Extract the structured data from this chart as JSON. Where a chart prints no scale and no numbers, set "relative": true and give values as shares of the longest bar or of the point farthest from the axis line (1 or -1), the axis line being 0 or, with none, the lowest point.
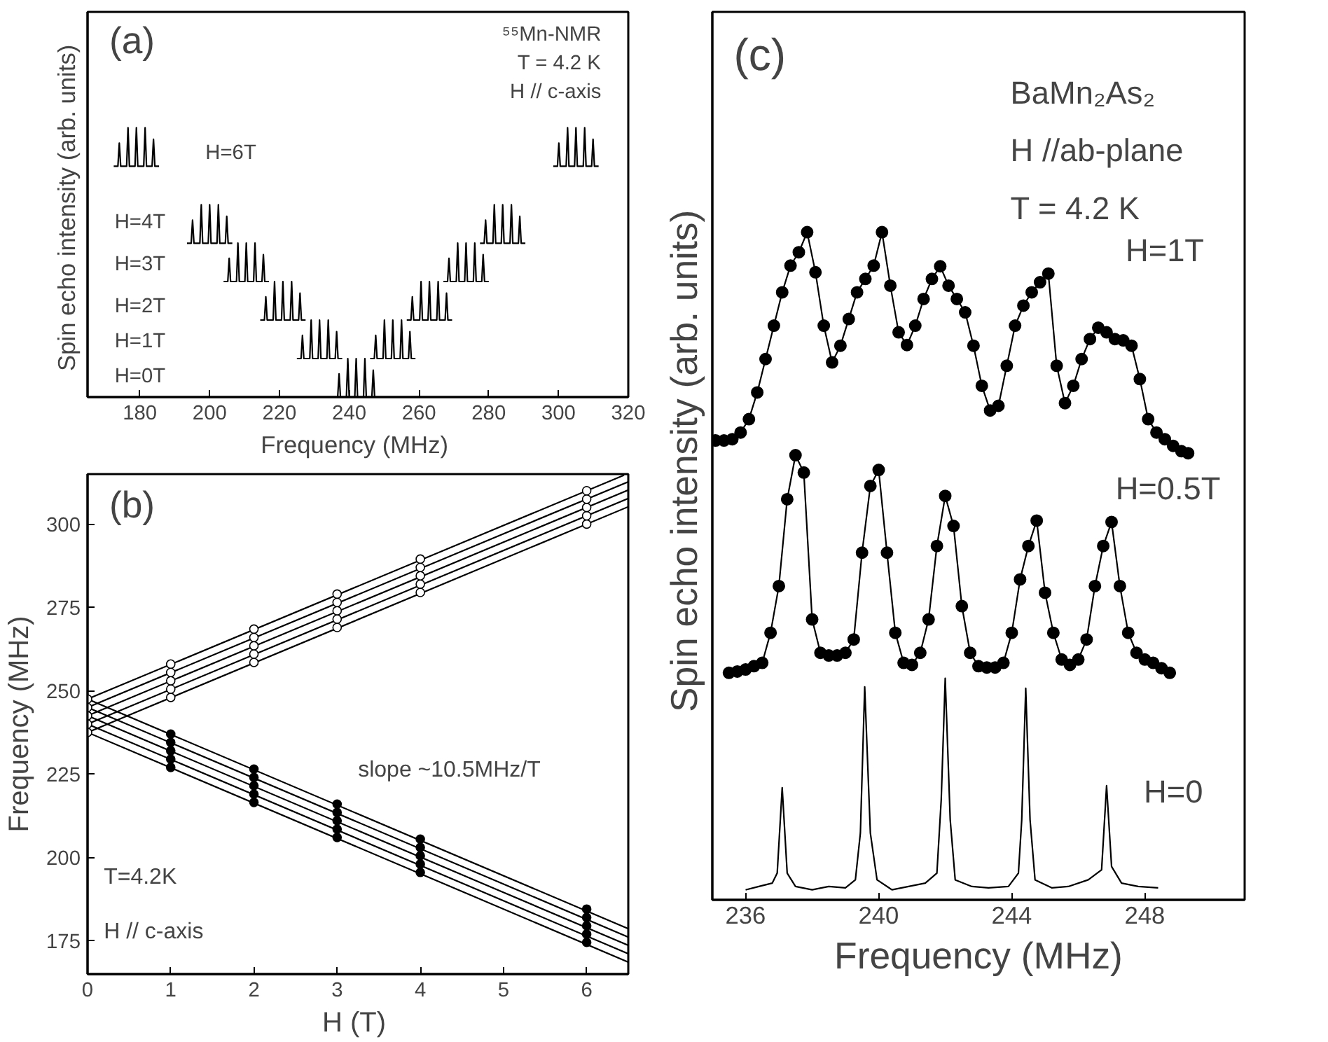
{
  "chart_data": [
    {
      "type": "line",
      "relative": true,
      "tick_labels": "x",
      "xlabel": "Frequency  (MHz)",
      "ylabel": "Spin echo intensity  (arb. units)",
      "xlim": [
        165,
        320
      ],
      "xticks": [
        180,
        200,
        220,
        240,
        260,
        280,
        300,
        320
      ],
      "annotations": [
        "(a)",
        "⁵⁵Mn-NMR",
        "T = 4.2 K",
        "H // c-axis",
        "H=6T",
        "H=4T",
        "H=3T",
        "H=2T",
        "H=1T",
        "H=0T"
      ],
      "series": [
        {
          "color": "#000000",
          "x": [
            235.5,
            236.7,
            237.1,
            237.5,
            239.2,
            239.6,
            240,
            241.6,
            242,
            242.4,
            244.1,
            244.5,
            244.9,
            246.5,
            246.9,
            247.3,
            248.5
          ],
          "values": [
            0,
            0,
            0.086,
            0,
            0,
            0.143,
            0,
            0,
            0.143,
            0,
            0,
            0.143,
            0,
            0,
            0.1,
            0,
            0
          ]
        },
        {
          "color": "#000000",
          "x": [
            225,
            226.2,
            226.6,
            227,
            228.7,
            229.1,
            229.5,
            231.1,
            231.5,
            231.9,
            233.6,
            234,
            234.4,
            236,
            236.4,
            236.8,
            238
          ],
          "values": [
            0.143,
            0.143,
            0.229,
            0.143,
            0.143,
            0.286,
            0.143,
            0.143,
            0.286,
            0.143,
            0.143,
            0.286,
            0.143,
            0.143,
            0.243,
            0.143,
            0.143
          ]
        },
        {
          "color": "#000000",
          "x": [
            246,
            247.2,
            247.6,
            248,
            249.7,
            250.1,
            250.5,
            252.1,
            252.5,
            252.9,
            254.6,
            255,
            255.4,
            257,
            257.4,
            257.8,
            259
          ],
          "values": [
            0.143,
            0.143,
            0.229,
            0.143,
            0.143,
            0.286,
            0.143,
            0.143,
            0.286,
            0.143,
            0.143,
            0.286,
            0.143,
            0.143,
            0.243,
            0.143,
            0.143
          ]
        },
        {
          "color": "#000000",
          "x": [
            214.5,
            215.7,
            216.1,
            216.5,
            218.2,
            218.6,
            219,
            220.6,
            221,
            221.4,
            223.1,
            223.5,
            223.9,
            225.5,
            225.9,
            226.3,
            227.5
          ],
          "values": [
            0.286,
            0.286,
            0.372,
            0.286,
            0.286,
            0.429,
            0.286,
            0.286,
            0.429,
            0.286,
            0.286,
            0.429,
            0.286,
            0.286,
            0.386,
            0.286,
            0.286
          ]
        },
        {
          "color": "#000000",
          "x": [
            256.5,
            257.7,
            258.1,
            258.5,
            260.2,
            260.6,
            261,
            262.6,
            263,
            263.4,
            265.1,
            265.5,
            265.9,
            267.5,
            267.9,
            268.3,
            269.5
          ],
          "values": [
            0.286,
            0.286,
            0.372,
            0.286,
            0.286,
            0.429,
            0.286,
            0.286,
            0.429,
            0.286,
            0.286,
            0.429,
            0.286,
            0.286,
            0.386,
            0.286,
            0.286
          ]
        },
        {
          "color": "#000000",
          "x": [
            204,
            205.2,
            205.6,
            206,
            207.7,
            208.1,
            208.5,
            210.1,
            210.5,
            210.9,
            212.6,
            213,
            213.4,
            215,
            215.4,
            215.8,
            217
          ],
          "values": [
            0.429,
            0.429,
            0.515,
            0.429,
            0.429,
            0.572,
            0.429,
            0.429,
            0.572,
            0.429,
            0.429,
            0.572,
            0.429,
            0.429,
            0.529,
            0.429,
            0.429
          ]
        },
        {
          "color": "#000000",
          "x": [
            267,
            268.2,
            268.6,
            269,
            270.7,
            271.1,
            271.5,
            273.1,
            273.5,
            273.9,
            275.6,
            276,
            276.4,
            278,
            278.4,
            278.8,
            280
          ],
          "values": [
            0.429,
            0.429,
            0.515,
            0.429,
            0.429,
            0.572,
            0.429,
            0.429,
            0.572,
            0.429,
            0.429,
            0.572,
            0.429,
            0.429,
            0.529,
            0.429,
            0.429
          ]
        },
        {
          "color": "#000000",
          "x": [
            193.5,
            194.7,
            195.1,
            195.5,
            197.2,
            197.6,
            198,
            199.6,
            200,
            200.4,
            202.1,
            202.5,
            202.9,
            204.5,
            204.9,
            205.3,
            206.5
          ],
          "values": [
            0.571,
            0.571,
            0.657,
            0.571,
            0.571,
            0.714,
            0.571,
            0.571,
            0.714,
            0.571,
            0.571,
            0.714,
            0.571,
            0.571,
            0.671,
            0.571,
            0.571
          ]
        },
        {
          "color": "#000000",
          "x": [
            277.5,
            278.7,
            279.1,
            279.5,
            281.2,
            281.6,
            282,
            283.6,
            284,
            284.4,
            286.1,
            286.5,
            286.9,
            288.5,
            288.9,
            289.3,
            290.5
          ],
          "values": [
            0.571,
            0.571,
            0.657,
            0.571,
            0.571,
            0.714,
            0.571,
            0.571,
            0.714,
            0.571,
            0.571,
            0.714,
            0.571,
            0.571,
            0.671,
            0.571,
            0.571
          ]
        },
        {
          "color": "#000000",
          "x": [
            172.5,
            173.7,
            174.1,
            174.5,
            176.2,
            176.6,
            177,
            178.6,
            179,
            179.4,
            181.1,
            181.5,
            181.9,
            183.5,
            183.9,
            184.3,
            185.5
          ],
          "values": [
            0.857,
            0.857,
            0.943,
            0.857,
            0.857,
            1,
            0.857,
            0.857,
            1,
            0.857,
            0.857,
            1,
            0.857,
            0.857,
            0.957,
            0.857,
            0.857
          ]
        },
        {
          "color": "#000000",
          "x": [
            298.5,
            299.7,
            300.1,
            300.5,
            302.2,
            302.6,
            303,
            304.6,
            305,
            305.4,
            307.1,
            307.5,
            307.9,
            309.5,
            309.9,
            310.3,
            311.5
          ],
          "values": [
            0.857,
            0.857,
            0.943,
            0.857,
            0.857,
            1,
            0.857,
            0.857,
            1,
            0.857,
            0.857,
            1,
            0.857,
            0.857,
            0.957,
            0.857,
            0.857
          ]
        }
      ]
    },
    {
      "type": "line",
      "xlabel": "H  (T)",
      "ylabel": "Frequency (MHz)",
      "xlim": [
        0,
        6.5
      ],
      "xticks": [
        0,
        1,
        2,
        3,
        4,
        5,
        6
      ],
      "ylim": [
        165,
        315
      ],
      "yticks": [
        175,
        200,
        225,
        250,
        275,
        300
      ],
      "annotations": [
        "(b)",
        "T=4.2K",
        "H // c-axis",
        "slope ~10.5MHz/T"
      ],
      "series": [
        {
          "color": "#000000",
          "x": [
            0,
            6.5
          ],
          "values": [
            237.5,
            305.2
          ]
        },
        {
          "color": "#000000",
          "x": [
            0,
            6.5
          ],
          "values": [
            240,
            307.7
          ]
        },
        {
          "color": "#000000",
          "x": [
            0,
            6.5
          ],
          "values": [
            242.5,
            310.2
          ]
        },
        {
          "color": "#000000",
          "x": [
            0,
            6.5
          ],
          "values": [
            245,
            312.7
          ]
        },
        {
          "color": "#000000",
          "x": [
            0,
            6.45
          ],
          "values": [
            247.5,
            314.7
          ]
        },
        {
          "color": "#000000",
          "x": [
            0,
            6.5
          ],
          "values": [
            237.5,
            168.6
          ]
        },
        {
          "color": "#000000",
          "x": [
            0,
            6.5
          ],
          "values": [
            240,
            171.1
          ]
        },
        {
          "color": "#000000",
          "x": [
            0,
            6.5
          ],
          "values": [
            242.5,
            173.6
          ]
        },
        {
          "color": "#000000",
          "x": [
            0,
            6.5
          ],
          "values": [
            245,
            176.1
          ]
        },
        {
          "color": "#000000",
          "x": [
            0,
            6.5
          ],
          "values": [
            247.5,
            178.6
          ]
        },
        {
          "type": "scatter",
          "marker": "circle",
          "color": "#ffffff",
          "x": [
            0,
            0,
            0,
            0,
            0,
            1,
            1,
            1,
            1,
            1,
            2,
            2,
            2,
            2,
            2,
            3,
            3,
            3,
            3,
            3,
            4,
            4,
            4,
            4,
            4,
            6,
            6,
            6,
            6,
            6
          ],
          "values": [
            237.5,
            240,
            242.5,
            245,
            247.5,
            248,
            250.5,
            253,
            255.5,
            258,
            258.5,
            261,
            263.5,
            266,
            268.5,
            269,
            271.5,
            274,
            276.5,
            279,
            279.5,
            282,
            284.5,
            287,
            289.5,
            300,
            302.5,
            305,
            307.5,
            310
          ]
        },
        {
          "type": "scatter",
          "marker": "circle",
          "color": "#000000",
          "x": [
            1,
            1,
            1,
            1,
            1,
            2,
            2,
            2,
            2,
            2,
            3,
            3,
            3,
            3,
            3,
            4,
            4,
            4,
            4,
            4,
            6,
            6,
            6,
            6,
            6
          ],
          "values": [
            227,
            229.5,
            232,
            234.5,
            237,
            216.5,
            219,
            221.5,
            224,
            226.5,
            206,
            208.5,
            211,
            213.5,
            216,
            195.5,
            198,
            200.5,
            203,
            205.5,
            174.5,
            177,
            179.5,
            182,
            184.5
          ]
        }
      ]
    },
    {
      "type": "line",
      "relative": true,
      "tick_labels": "x",
      "xlabel": "Frequency (MHz)",
      "ylabel": "Spin echo intensity  (arb. units)",
      "xlim": [
        235,
        251
      ],
      "xticks": [
        236,
        240,
        244,
        248
      ],
      "annotations": [
        "(c)",
        "BaMn₂As₂",
        "H //ab-plane",
        "T = 4.2 K",
        "H=1T",
        "H=0.5T",
        "H=0"
      ],
      "series": [
        {
          "color": "#000000",
          "marker": "circle",
          "x": [
            235.1,
            235.35,
            235.6,
            235.85,
            236.1,
            236.35,
            236.6,
            236.85,
            237.1,
            237.35,
            237.6,
            237.85,
            238.1,
            238.35,
            238.6,
            238.85,
            239.1,
            239.35,
            239.6,
            239.85,
            240.1,
            240.35,
            240.6,
            240.85,
            241.1,
            241.35,
            241.6,
            241.85,
            242.1,
            242.35,
            242.6,
            242.85,
            243.1,
            243.35,
            243.6,
            243.85,
            244.1,
            244.35,
            244.6,
            244.85,
            245.1,
            245.35,
            245.6,
            245.85,
            246.1,
            246.35,
            246.6,
            246.85,
            247.1,
            247.35,
            247.6,
            247.85,
            248.1,
            248.35,
            248.6,
            248.85,
            249.1,
            249.3
          ],
          "values": [
            0.688,
            0.688,
            0.69,
            0.7,
            0.72,
            0.76,
            0.81,
            0.86,
            0.91,
            0.95,
            0.97,
            1,
            0.94,
            0.86,
            0.805,
            0.83,
            0.87,
            0.91,
            0.93,
            0.95,
            1,
            0.92,
            0.85,
            0.831,
            0.86,
            0.9,
            0.93,
            0.949,
            0.92,
            0.9,
            0.88,
            0.83,
            0.77,
            0.733,
            0.74,
            0.8,
            0.86,
            0.89,
            0.91,
            0.925,
            0.938,
            0.8,
            0.744,
            0.77,
            0.81,
            0.84,
            0.857,
            0.85,
            0.84,
            0.838,
            0.83,
            0.78,
            0.72,
            0.7,
            0.69,
            0.68,
            0.672,
            0.669
          ]
        },
        {
          "color": "#000000",
          "marker": "circle",
          "x": [
            235.5,
            235.75,
            236,
            236.25,
            236.5,
            236.75,
            237,
            237.25,
            237.5,
            237.75,
            238,
            238.25,
            238.5,
            238.75,
            239,
            239.25,
            239.5,
            239.75,
            240,
            240.25,
            240.5,
            240.75,
            241,
            241.25,
            241.5,
            241.75,
            242,
            242.25,
            242.5,
            242.75,
            243,
            243.25,
            243.5,
            243.75,
            244,
            244.25,
            244.5,
            244.75,
            245,
            245.25,
            245.5,
            245.75,
            246,
            246.25,
            246.5,
            246.75,
            247,
            247.25,
            247.5,
            247.75,
            248,
            248.25,
            248.5,
            248.75
          ],
          "values": [
            0.34,
            0.342,
            0.345,
            0.35,
            0.355,
            0.4,
            0.47,
            0.6,
            0.666,
            0.64,
            0.42,
            0.37,
            0.366,
            0.366,
            0.37,
            0.39,
            0.52,
            0.62,
            0.644,
            0.52,
            0.4,
            0.355,
            0.352,
            0.37,
            0.42,
            0.53,
            0.605,
            0.56,
            0.44,
            0.37,
            0.35,
            0.348,
            0.348,
            0.355,
            0.4,
            0.48,
            0.53,
            0.568,
            0.46,
            0.4,
            0.36,
            0.352,
            0.36,
            0.39,
            0.47,
            0.53,
            0.566,
            0.47,
            0.4,
            0.37,
            0.36,
            0.355,
            0.347,
            0.34
          ]
        },
        {
          "color": "#000000",
          "x": [
            236,
            236.4,
            236.8,
            236.95,
            237.1,
            237.25,
            237.5,
            238,
            238.5,
            239,
            239.3,
            239.45,
            239.58,
            239.75,
            239.95,
            240.4,
            240.9,
            241.4,
            241.75,
            241.88,
            242,
            242.15,
            242.3,
            242.8,
            243.3,
            243.9,
            244.2,
            244.3,
            244.42,
            244.55,
            244.7,
            245.2,
            245.7,
            246.3,
            246.7,
            246.85,
            247,
            247.3,
            247.8,
            248.4
          ],
          "values": [
            0.015,
            0.02,
            0.025,
            0.04,
            0.168,
            0.04,
            0.02,
            0.015,
            0.02,
            0.018,
            0.03,
            0.1,
            0.319,
            0.1,
            0.03,
            0.015,
            0.02,
            0.025,
            0.04,
            0.15,
            0.332,
            0.12,
            0.03,
            0.02,
            0.018,
            0.02,
            0.04,
            0.12,
            0.317,
            0.12,
            0.03,
            0.018,
            0.02,
            0.03,
            0.045,
            0.171,
            0.05,
            0.025,
            0.02,
            0.018
          ]
        }
      ]
    }
  ]
}
